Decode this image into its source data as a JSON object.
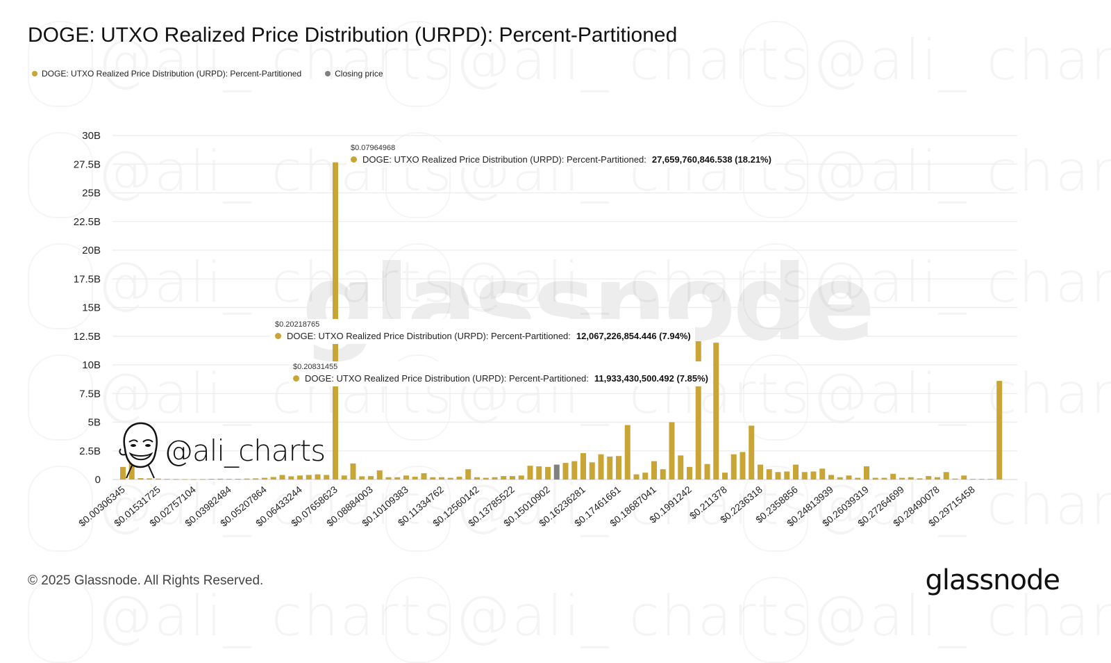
{
  "title": "DOGE: UTXO Realized Price Distribution (URPD): Percent-Partitioned",
  "legend": [
    {
      "label": "DOGE: UTXO Realized Price Distribution (URPD): Percent-Partitioned",
      "color": "#c8a535"
    },
    {
      "label": "Closing price",
      "color": "#808080"
    }
  ],
  "watermark": {
    "handle": "@ali_charts",
    "brand": "glassnode"
  },
  "tooltips": [
    {
      "price": "$0.07964968",
      "series": "DOGE: UTXO Realized Price Distribution (URPD): Percent-Partitioned:",
      "value": "27,659,760,846.538 (18.21%)"
    },
    {
      "price": "$0.20218765",
      "series": "DOGE: UTXO Realized Price Distribution (URPD): Percent-Partitioned:",
      "value": "12,067,226,854.446 (7.94%)"
    },
    {
      "price": "$0.20831455",
      "series": "DOGE: UTXO Realized Price Distribution (URPD): Percent-Partitioned:",
      "value": "11,933,430,500.492 (7.85%)"
    }
  ],
  "footer": {
    "copyright": "© 2025 Glassnode. All Rights Reserved.",
    "logo": "glassnode"
  },
  "chart_data": {
    "type": "bar",
    "title": "DOGE: UTXO Realized Price Distribution (URPD): Percent-Partitioned",
    "xlabel": "",
    "ylabel": "",
    "ylim": [
      0,
      30
    ],
    "y_unit": "B",
    "yticks": [
      "0",
      "2.5B",
      "5B",
      "7.5B",
      "10B",
      "12.5B",
      "15B",
      "17.5B",
      "20B",
      "22.5B",
      "25B",
      "27.5B",
      "30B"
    ],
    "ytick_values": [
      0,
      2.5,
      5,
      7.5,
      10,
      12.5,
      15,
      17.5,
      20,
      22.5,
      25,
      27.5,
      30
    ],
    "grid": true,
    "legend_position": "top-left",
    "xtick_labels": [
      "$0.00306345",
      "$0.01531725",
      "$0.02757104",
      "$0.03982484",
      "$0.05207864",
      "$0.06433244",
      "$0.07658623",
      "$0.08884003",
      "$0.10109383",
      "$0.11334762",
      "$0.12560142",
      "$0.13785522",
      "$0.15010902",
      "$0.16236281",
      "$0.17461661",
      "$0.18687041",
      "$0.1991242",
      "$0.211378",
      "$0.2236318",
      "$0.2358856",
      "$0.24813939",
      "$0.26039319",
      "$0.27264699",
      "$0.28490078",
      "$0.29715458"
    ],
    "xtick_every": 4,
    "closing_price_index": 49,
    "series": [
      {
        "name": "DOGE: UTXO Realized Price Distribution (URPD): Percent-Partitioned",
        "color": "#c8a535",
        "values": [
          1.1,
          1.7,
          0.12,
          0.1,
          0.08,
          0.05,
          0.04,
          0.03,
          0.03,
          0.04,
          0.06,
          0.07,
          0.05,
          0.06,
          0.08,
          0.1,
          0.15,
          0.22,
          0.4,
          0.28,
          0.35,
          0.4,
          0.45,
          0.4,
          27.66,
          0.35,
          1.4,
          0.28,
          0.3,
          0.8,
          0.2,
          0.2,
          0.35,
          0.25,
          0.55,
          0.2,
          0.2,
          0.15,
          0.25,
          0.9,
          0.2,
          0.15,
          0.2,
          0.3,
          0.3,
          0.35,
          1.2,
          1.15,
          1.1,
          1.3,
          1.45,
          1.6,
          2.3,
          1.5,
          2.2,
          2.0,
          2.05,
          4.75,
          0.45,
          0.6,
          1.6,
          0.9,
          5.0,
          2.1,
          1.1,
          12.07,
          1.35,
          11.93,
          0.6,
          2.2,
          2.4,
          4.7,
          1.3,
          0.9,
          0.65,
          0.7,
          1.3,
          0.65,
          0.7,
          0.95,
          0.4,
          0.2,
          0.35,
          0.15,
          1.15,
          0.15,
          0.15,
          0.5,
          0.15,
          0.2,
          0.1,
          0.3,
          0.2,
          0.65,
          0.08,
          0.35,
          0.05,
          0.05,
          0.05,
          8.6
        ]
      }
    ],
    "annotations": [
      {
        "price": "$0.07964968",
        "value": 27659760846.538,
        "percent": 18.21
      },
      {
        "price": "$0.20218765",
        "value": 12067226854.446,
        "percent": 7.94
      },
      {
        "price": "$0.20831455",
        "value": 11933430500.492,
        "percent": 7.85
      }
    ]
  }
}
